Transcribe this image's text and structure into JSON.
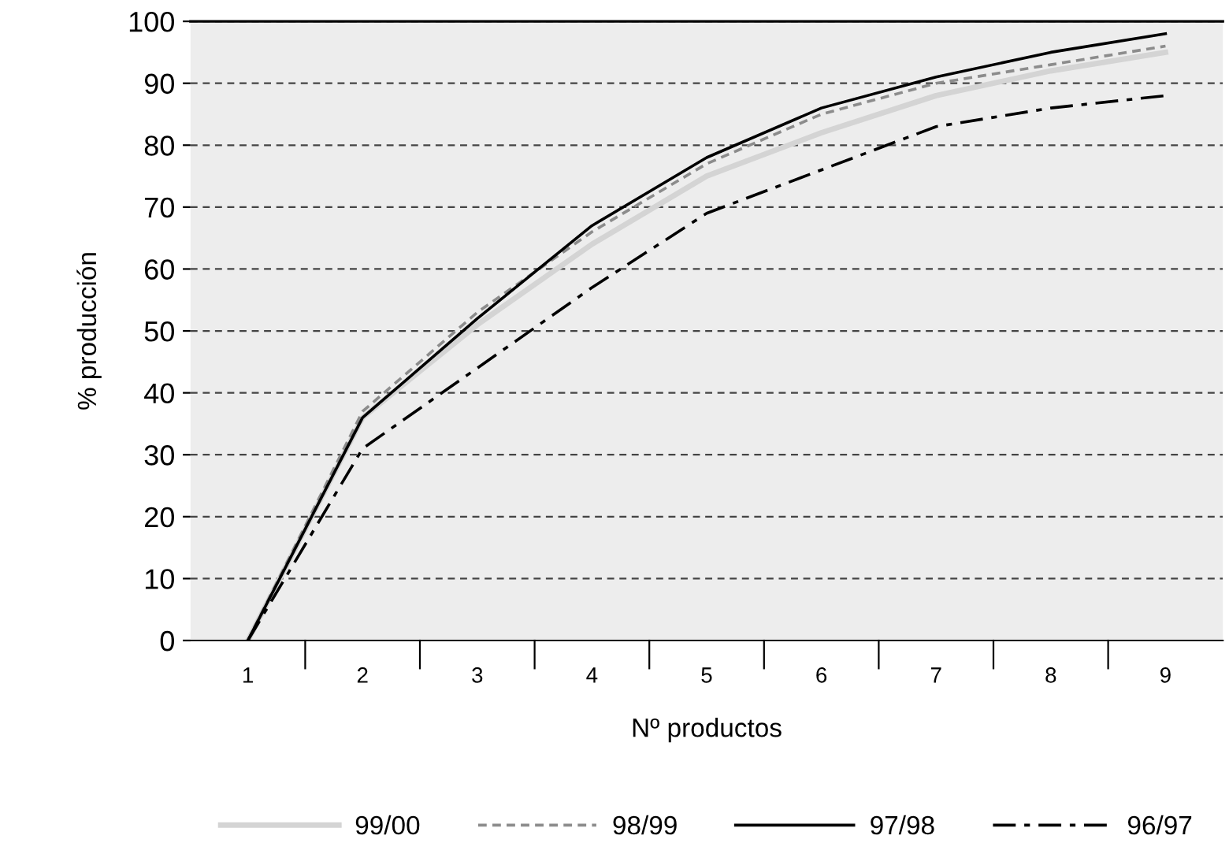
{
  "chart_data": {
    "type": "line",
    "xlabel": "Nº productos",
    "ylabel": "% producción",
    "categories": [
      "1",
      "2",
      "3",
      "4",
      "5",
      "6",
      "7",
      "8",
      "9"
    ],
    "ylim": [
      0,
      100
    ],
    "yticks": [
      0,
      10,
      20,
      30,
      40,
      50,
      60,
      70,
      80,
      90,
      100
    ],
    "grid": "y",
    "legend": "bottom",
    "marker": "none",
    "series": [
      {
        "name": "99/00",
        "color": "#d4d4d4",
        "line_style": "solid",
        "values": [
          0,
          36,
          51,
          64,
          75,
          82,
          88,
          92,
          95
        ]
      },
      {
        "name": "98/99",
        "color": "#8c8c8c",
        "line_style": "dashed",
        "values": [
          0,
          37,
          53,
          66,
          77,
          85,
          90,
          93,
          96
        ]
      },
      {
        "name": "97/98",
        "color": "#000000",
        "line_style": "solid",
        "values": [
          0,
          36,
          52,
          67,
          78,
          86,
          91,
          95,
          98
        ]
      },
      {
        "name": "96/97",
        "color": "#000000",
        "line_style": "dashdot",
        "values": [
          0,
          31,
          44,
          57,
          69,
          76,
          83,
          86,
          88
        ]
      }
    ]
  }
}
